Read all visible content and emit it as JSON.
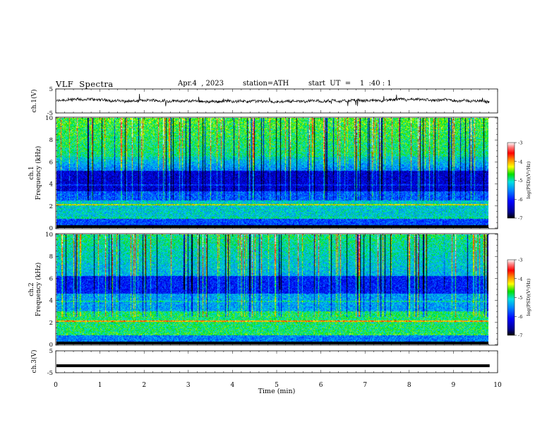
{
  "header": {
    "title": "VLF  Spectra",
    "date": "Apr.4  , 2023",
    "station": "station=ATH",
    "start": "start  UT  =    1  :40 : 1"
  },
  "chart_data": [
    {
      "type": "line",
      "panel": "ch1-waveform",
      "ylabel": "ch.1(V)",
      "ylim": [
        -5,
        5
      ],
      "yticks": [
        "5",
        "-5"
      ],
      "baseline": 0,
      "series": [
        {
          "values_desc": "noisy waveform around 0 V"
        }
      ]
    },
    {
      "type": "heatmap",
      "panel": "ch1-spectrogram",
      "ylabel": "ch.1\nFrequency  (kHz)",
      "ylabel_line1": "ch.1",
      "ylabel_line2": "Frequency  (kHz)",
      "ylim": [
        0,
        10
      ],
      "yticks": [
        "0",
        "2",
        "4",
        "6",
        "8",
        "10"
      ],
      "colorbar": {
        "label": "log(PSD)(V²/Hz)",
        "ticks": [
          "-3",
          "-4",
          "-5",
          "-6",
          "-7"
        ],
        "range": [
          -7,
          -3
        ]
      }
    },
    {
      "type": "heatmap",
      "panel": "ch2-spectrogram",
      "ylabel_line1": "ch.2",
      "ylabel_line2": "Frequency  (kHz)",
      "ylim": [
        0,
        10
      ],
      "yticks": [
        "0",
        "2",
        "4",
        "6",
        "8",
        "10"
      ],
      "colorbar": {
        "label": "log(PSD)(V²/Hz)",
        "ticks": [
          "-3",
          "-4",
          "-5",
          "-6",
          "-7"
        ],
        "range": [
          -7,
          -3
        ]
      }
    },
    {
      "type": "line",
      "panel": "ch3-waveform",
      "ylabel": "ch.3(V)",
      "ylim": [
        -5,
        5
      ],
      "yticks": [
        "5",
        "-5"
      ],
      "series": [
        {
          "values_desc": "flat line near -2 V",
          "level": -1.8
        }
      ]
    }
  ],
  "xaxis": {
    "label": "Time  (min)",
    "ticks": [
      "0",
      "1",
      "2",
      "3",
      "4",
      "5",
      "6",
      "7",
      "8",
      "9",
      "10"
    ],
    "range": [
      0,
      10
    ],
    "data_end": 9.82
  }
}
